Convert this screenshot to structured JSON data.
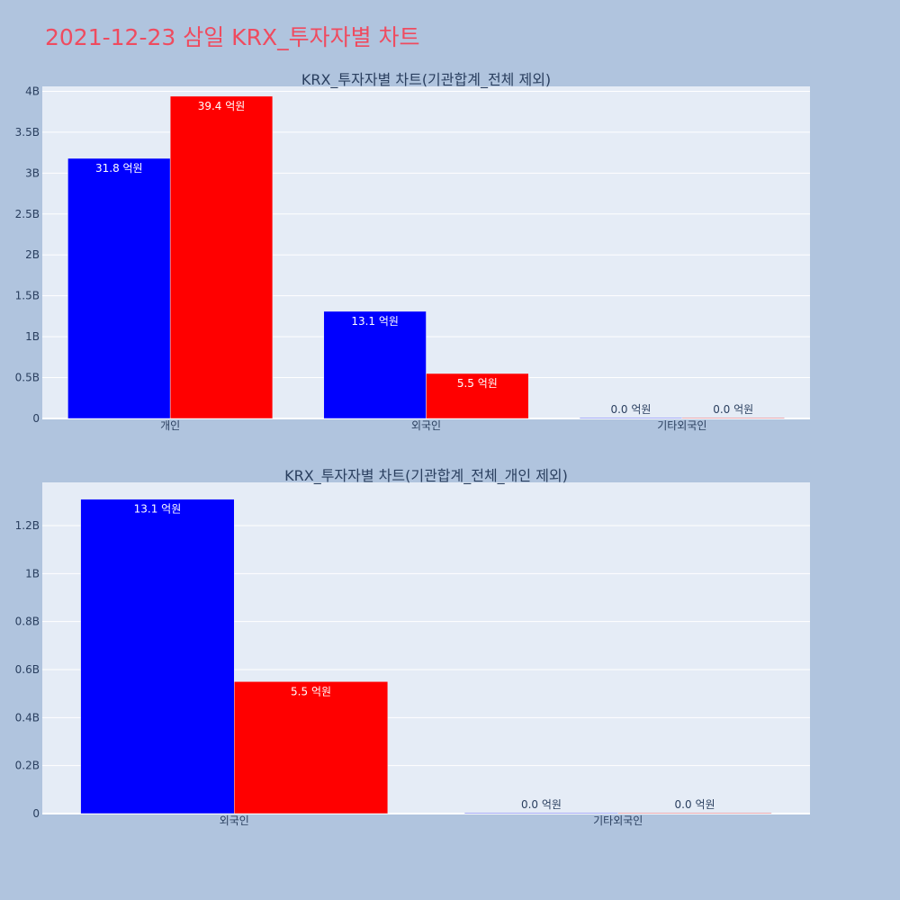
{
  "page_title": "2021-12-23 삼일 KRX_투자자별 차트",
  "colors": {
    "background": "#b0c4de",
    "plot_bg": "#e5ecf6",
    "title": "#ef4b5f",
    "text": "#2a3f5f",
    "series_blue": "#0000ff",
    "series_red": "#ff0000"
  },
  "chart_data": [
    {
      "type": "bar",
      "title": "KRX_투자자별 차트(기관합계_전체 제외)",
      "categories": [
        "개인",
        "외국인",
        "기타외국인"
      ],
      "series": [
        {
          "color": "#0000ff",
          "values": [
            3180000000,
            1310000000,
            0
          ],
          "labels": [
            "31.8 억원",
            "13.1 억원",
            "0.0 억원"
          ]
        },
        {
          "color": "#ff0000",
          "values": [
            3940000000,
            550000000,
            0
          ],
          "labels": [
            "39.4 억원",
            "5.5 억원",
            "0.0 억원"
          ]
        }
      ],
      "ylim": [
        0,
        4060000000
      ],
      "yticks": [
        0,
        500000000,
        1000000000,
        1500000000,
        2000000000,
        2500000000,
        3000000000,
        3500000000,
        4000000000
      ],
      "ytick_labels": [
        "0",
        "0.5B",
        "1B",
        "1.5B",
        "2B",
        "2.5B",
        "3B",
        "3.5B",
        "4B"
      ],
      "grid": true
    },
    {
      "type": "bar",
      "title": "KRX_투자자별 차트(기관합계_전체_개인 제외)",
      "categories": [
        "외국인",
        "기타외국인"
      ],
      "series": [
        {
          "color": "#0000ff",
          "values": [
            1310000000,
            0
          ],
          "labels": [
            "13.1 억원",
            "0.0 억원"
          ]
        },
        {
          "color": "#ff0000",
          "values": [
            550000000,
            0
          ],
          "labels": [
            "5.5 억원",
            "0.0 억원"
          ]
        }
      ],
      "ylim": [
        0,
        1380000000
      ],
      "yticks": [
        0,
        200000000,
        400000000,
        600000000,
        800000000,
        1000000000,
        1200000000
      ],
      "ytick_labels": [
        "0",
        "0.2B",
        "0.4B",
        "0.6B",
        "0.8B",
        "1B",
        "1.2B"
      ],
      "grid": true
    }
  ]
}
